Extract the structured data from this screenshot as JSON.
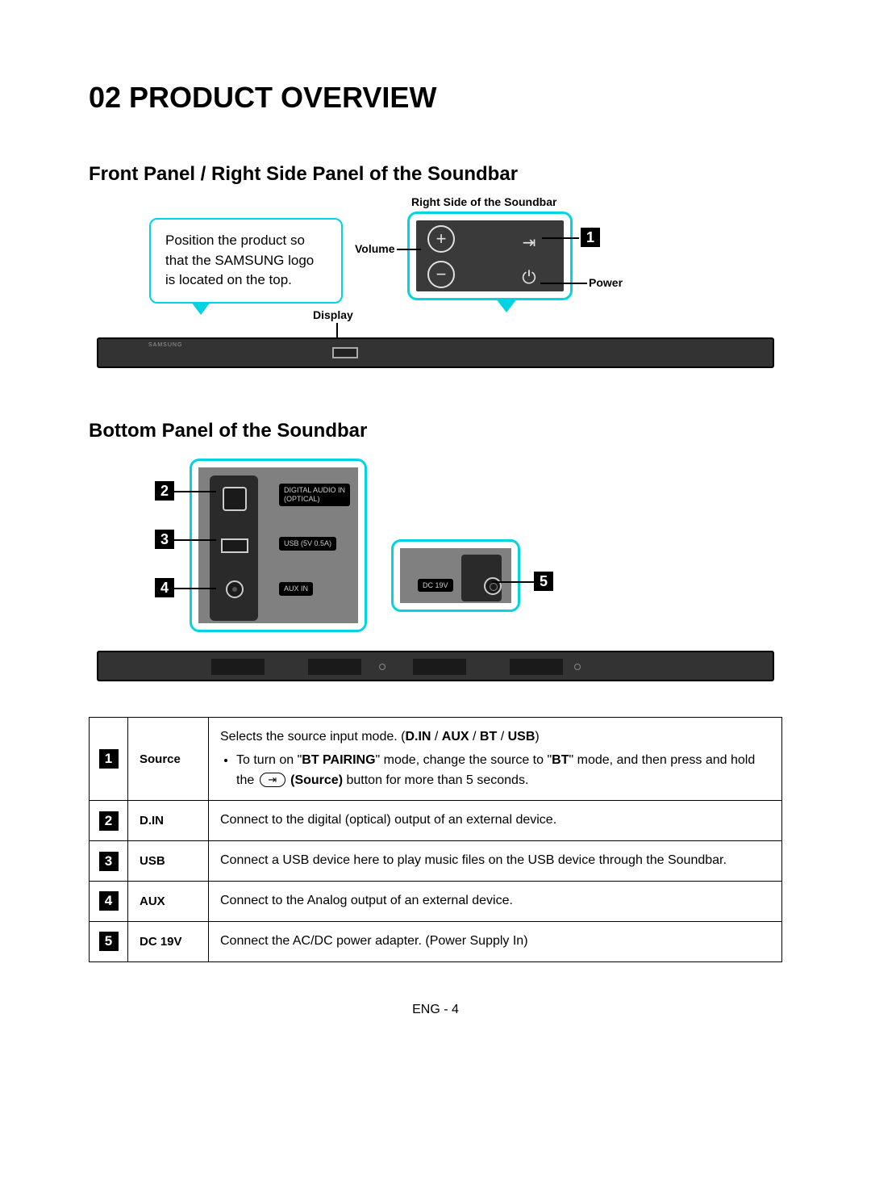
{
  "heading": "02 PRODUCT OVERVIEW",
  "section1": {
    "title": "Front Panel / Right Side Panel of the Soundbar",
    "callout_text": "Position the product so that the SAMSUNG logo is located on the top.",
    "right_side_label": "Right Side of the Soundbar",
    "labels": {
      "volume": "Volume",
      "display": "Display",
      "power": "Power"
    },
    "num1": "1",
    "logo_text": "SAMSUNG"
  },
  "section2": {
    "title": "Bottom Panel of the Soundbar",
    "port_labels": {
      "optical_line1": "DIGITAL AUDIO IN",
      "optical_line2": "(OPTICAL)",
      "usb": "USB (5V 0.5A)",
      "aux": "AUX IN",
      "dc": "DC 19V"
    },
    "nums": {
      "n2": "2",
      "n3": "3",
      "n4": "4",
      "n5": "5"
    }
  },
  "table": {
    "rows": [
      {
        "num": "1",
        "name": "Source",
        "desc_line1_a": "Selects the source input mode. (",
        "desc_line1_b1": "D.IN",
        "desc_line1_s": " / ",
        "desc_line1_b2": "AUX",
        "desc_line1_b3": "BT",
        "desc_line1_b4": "USB",
        "desc_line1_c": ")",
        "bullet_a": "To turn on \"",
        "bullet_b1": "BT PAIRING",
        "bullet_b": "\" mode, change the source to \"",
        "bullet_b2": "BT",
        "bullet_c": "\" mode, and then press and hold the ",
        "bullet_d": " (Source)",
        "bullet_e": " button for more than 5 seconds."
      },
      {
        "num": "2",
        "name": "D.IN",
        "desc": "Connect to the digital (optical) output of an external device."
      },
      {
        "num": "3",
        "name": "USB",
        "desc": "Connect a USB device here to play music files on the USB device through the Soundbar."
      },
      {
        "num": "4",
        "name": "AUX",
        "desc": "Connect to the Analog output of an external device."
      },
      {
        "num": "5",
        "name": "DC 19V",
        "desc": "Connect the AC/DC power adapter. (Power Supply In)"
      }
    ]
  },
  "footer": "ENG - 4",
  "colors": {
    "accent_cyan": "#00d4e0",
    "black": "#000000",
    "dark_gray": "#333333",
    "mid_gray": "#808080"
  }
}
